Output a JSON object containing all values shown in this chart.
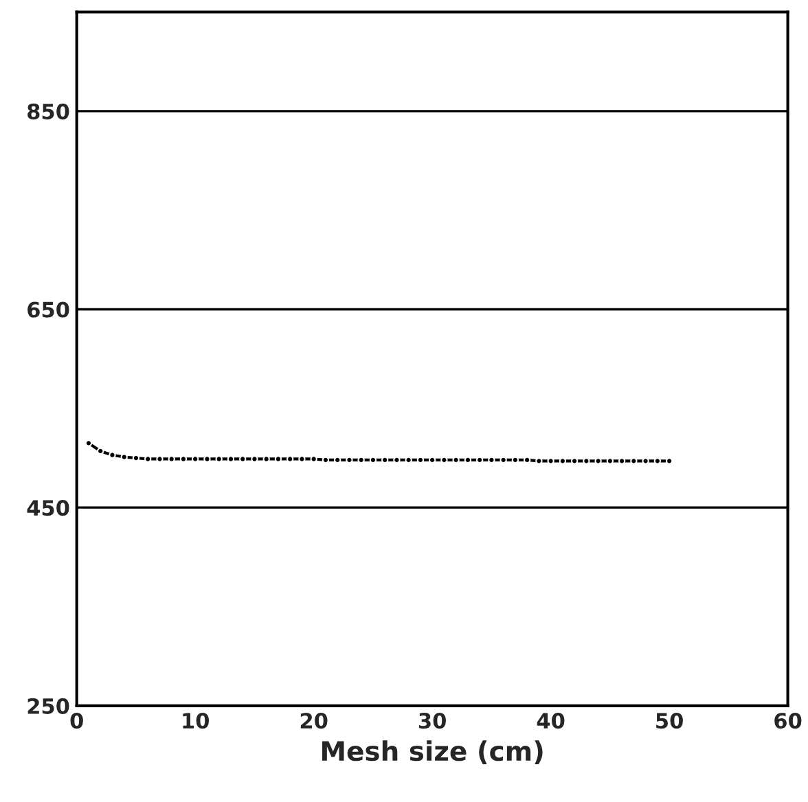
{
  "chart_data": {
    "type": "line",
    "xlabel": "Mesh size (cm)",
    "x": [
      1,
      2,
      3,
      4,
      5,
      6,
      7,
      8,
      9,
      10,
      11,
      12,
      13,
      14,
      15,
      16,
      17,
      18,
      19,
      20,
      21,
      22,
      23,
      24,
      25,
      26,
      27,
      28,
      29,
      30,
      31,
      32,
      33,
      34,
      35,
      36,
      37,
      38,
      39,
      40,
      41,
      42,
      43,
      44,
      45,
      46,
      47,
      48,
      49,
      50
    ],
    "series": [
      {
        "color": "#000000",
        "values": [
          515,
          507,
          503,
          501,
          500,
          499,
          499,
          499,
          499,
          499,
          499,
          499,
          499,
          499,
          499,
          499,
          499,
          499,
          499,
          499,
          498,
          498,
          498,
          498,
          498,
          498,
          498,
          498,
          498,
          498,
          498,
          498,
          498,
          498,
          498,
          498,
          498,
          498,
          497,
          497,
          497,
          497,
          497,
          497,
          497,
          497,
          497,
          497,
          497,
          497
        ]
      }
    ],
    "xlim": [
      0,
      60
    ],
    "xticks": [
      0,
      10,
      20,
      30,
      40,
      50,
      60
    ],
    "ylim": [
      250,
      950
    ],
    "yticks": [
      250,
      450,
      650,
      850
    ],
    "grid": "y",
    "marker": "circle",
    "line_style": "solid"
  }
}
